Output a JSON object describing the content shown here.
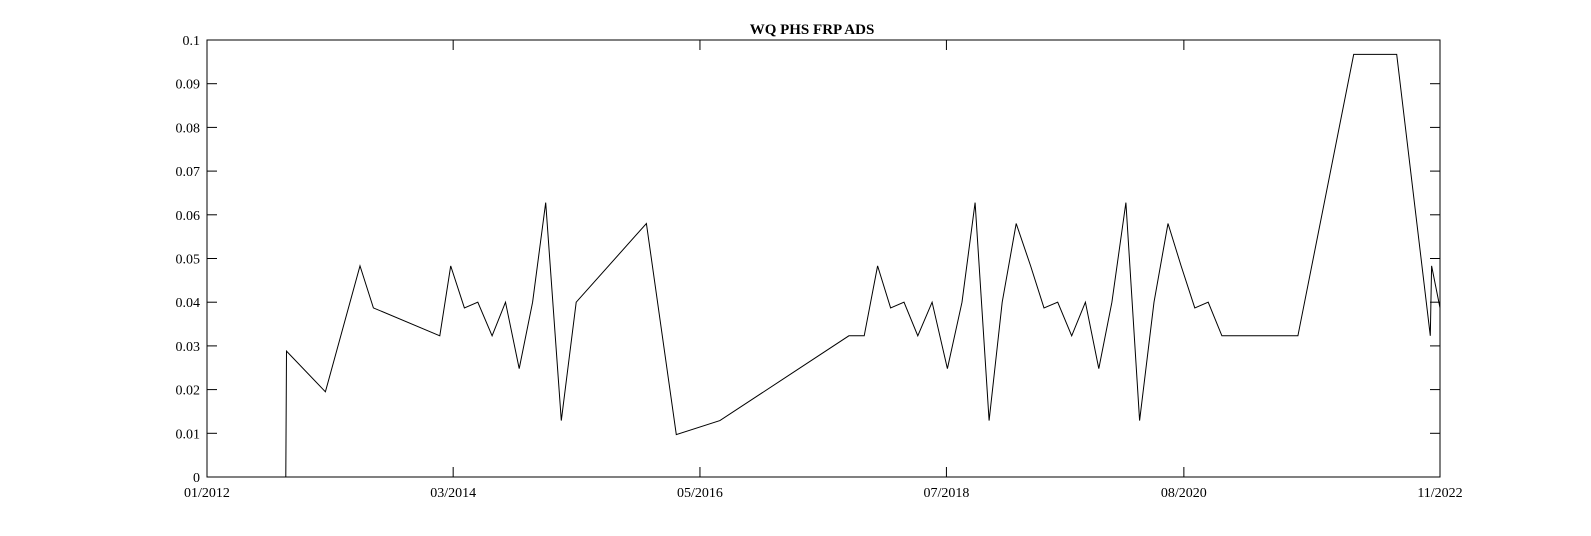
{
  "chart_data": {
    "type": "line",
    "title": "WQ PHS FRP ADS",
    "xlabel": "",
    "ylabel": "",
    "x_axis_kind": "date",
    "xlim": [
      "2012-01-01",
      "2022-11-01"
    ],
    "ylim": [
      0,
      0.1
    ],
    "grid": false,
    "y_ticks": [
      0,
      0.01,
      0.02,
      0.03,
      0.04,
      0.05,
      0.06,
      0.07,
      0.08,
      0.09,
      0.1
    ],
    "y_tick_labels": [
      "0",
      "0.01",
      "0.02",
      "0.03",
      "0.04",
      "0.05",
      "0.06",
      "0.07",
      "0.08",
      "0.09",
      "0.1"
    ],
    "x_ticks": [
      "2012-01-01",
      "2014-03-01",
      "2016-05-01",
      "2018-07-01",
      "2020-08-01",
      "2022-11-01"
    ],
    "x_tick_labels": [
      "01/2012",
      "03/2014",
      "05/2016",
      "07/2018",
      "08/2020",
      "11/2022"
    ],
    "series": [
      {
        "x": [
          "2012-01-01",
          "2012-09-10",
          "2012-09-12",
          "2013-01-15",
          "2013-05-06",
          "2013-06-18",
          "2014-01-17",
          "2014-02-21",
          "2014-04-06",
          "2014-05-19",
          "2014-07-04",
          "2014-08-16",
          "2014-09-29",
          "2014-11-11",
          "2014-12-23",
          "2015-02-11",
          "2015-03-31",
          "2015-11-11",
          "2016-02-15",
          "2016-07-04",
          "2017-08-22",
          "2017-10-10",
          "2017-11-22",
          "2018-01-03",
          "2018-02-15",
          "2018-03-31",
          "2018-05-16",
          "2018-07-04",
          "2018-08-20",
          "2018-10-01",
          "2018-11-15",
          "2018-12-27",
          "2019-02-10",
          "2019-03-28",
          "2019-05-10",
          "2019-06-23",
          "2019-08-07",
          "2019-09-20",
          "2019-11-02",
          "2019-12-14",
          "2020-01-28",
          "2020-03-12",
          "2020-04-27",
          "2020-06-11",
          "2020-07-23",
          "2020-09-05",
          "2020-10-18",
          "2020-12-01",
          "2021-08-02",
          "2022-01-28",
          "2022-06-15",
          "2022-10-01",
          "2022-10-05",
          "2022-11-01"
        ],
        "y": [
          0,
          0,
          0.0288,
          0.0195,
          0.0483,
          0.0387,
          0.0323,
          0.0483,
          0.0387,
          0.04,
          0.0323,
          0.04,
          0.0248,
          0.04,
          0.0628,
          0.0129,
          0.04,
          0.058,
          0.0097,
          0.0129,
          0.0323,
          0.0323,
          0.0483,
          0.0387,
          0.04,
          0.0323,
          0.04,
          0.0248,
          0.04,
          0.0628,
          0.0129,
          0.04,
          0.058,
          0.0483,
          0.0387,
          0.04,
          0.0323,
          0.04,
          0.0248,
          0.04,
          0.0628,
          0.0129,
          0.04,
          0.058,
          0.0483,
          0.0387,
          0.04,
          0.0323,
          0.0323,
          0.0967,
          0.0967,
          0.0323,
          0.0483,
          0.0387
        ]
      }
    ]
  }
}
